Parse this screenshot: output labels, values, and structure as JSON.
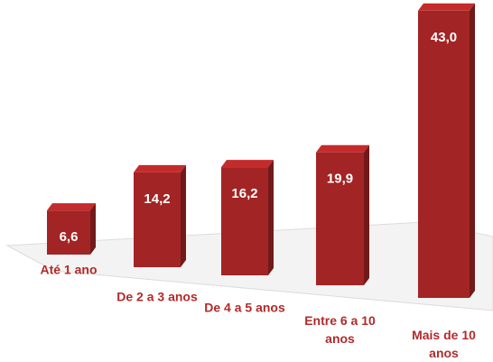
{
  "chart_data": {
    "type": "bar",
    "categories": [
      "Até 1 ano",
      "De 2 a 3 anos",
      "De 4 a 5 anos",
      "Entre 6 a 10 anos",
      "Mais de 10 anos"
    ],
    "values": [
      6.6,
      14.2,
      16.2,
      19.9,
      43.0
    ],
    "value_labels": [
      "6,6",
      "14,2",
      "16,2",
      "19,9",
      "43,0"
    ],
    "color": "#a32424"
  }
}
